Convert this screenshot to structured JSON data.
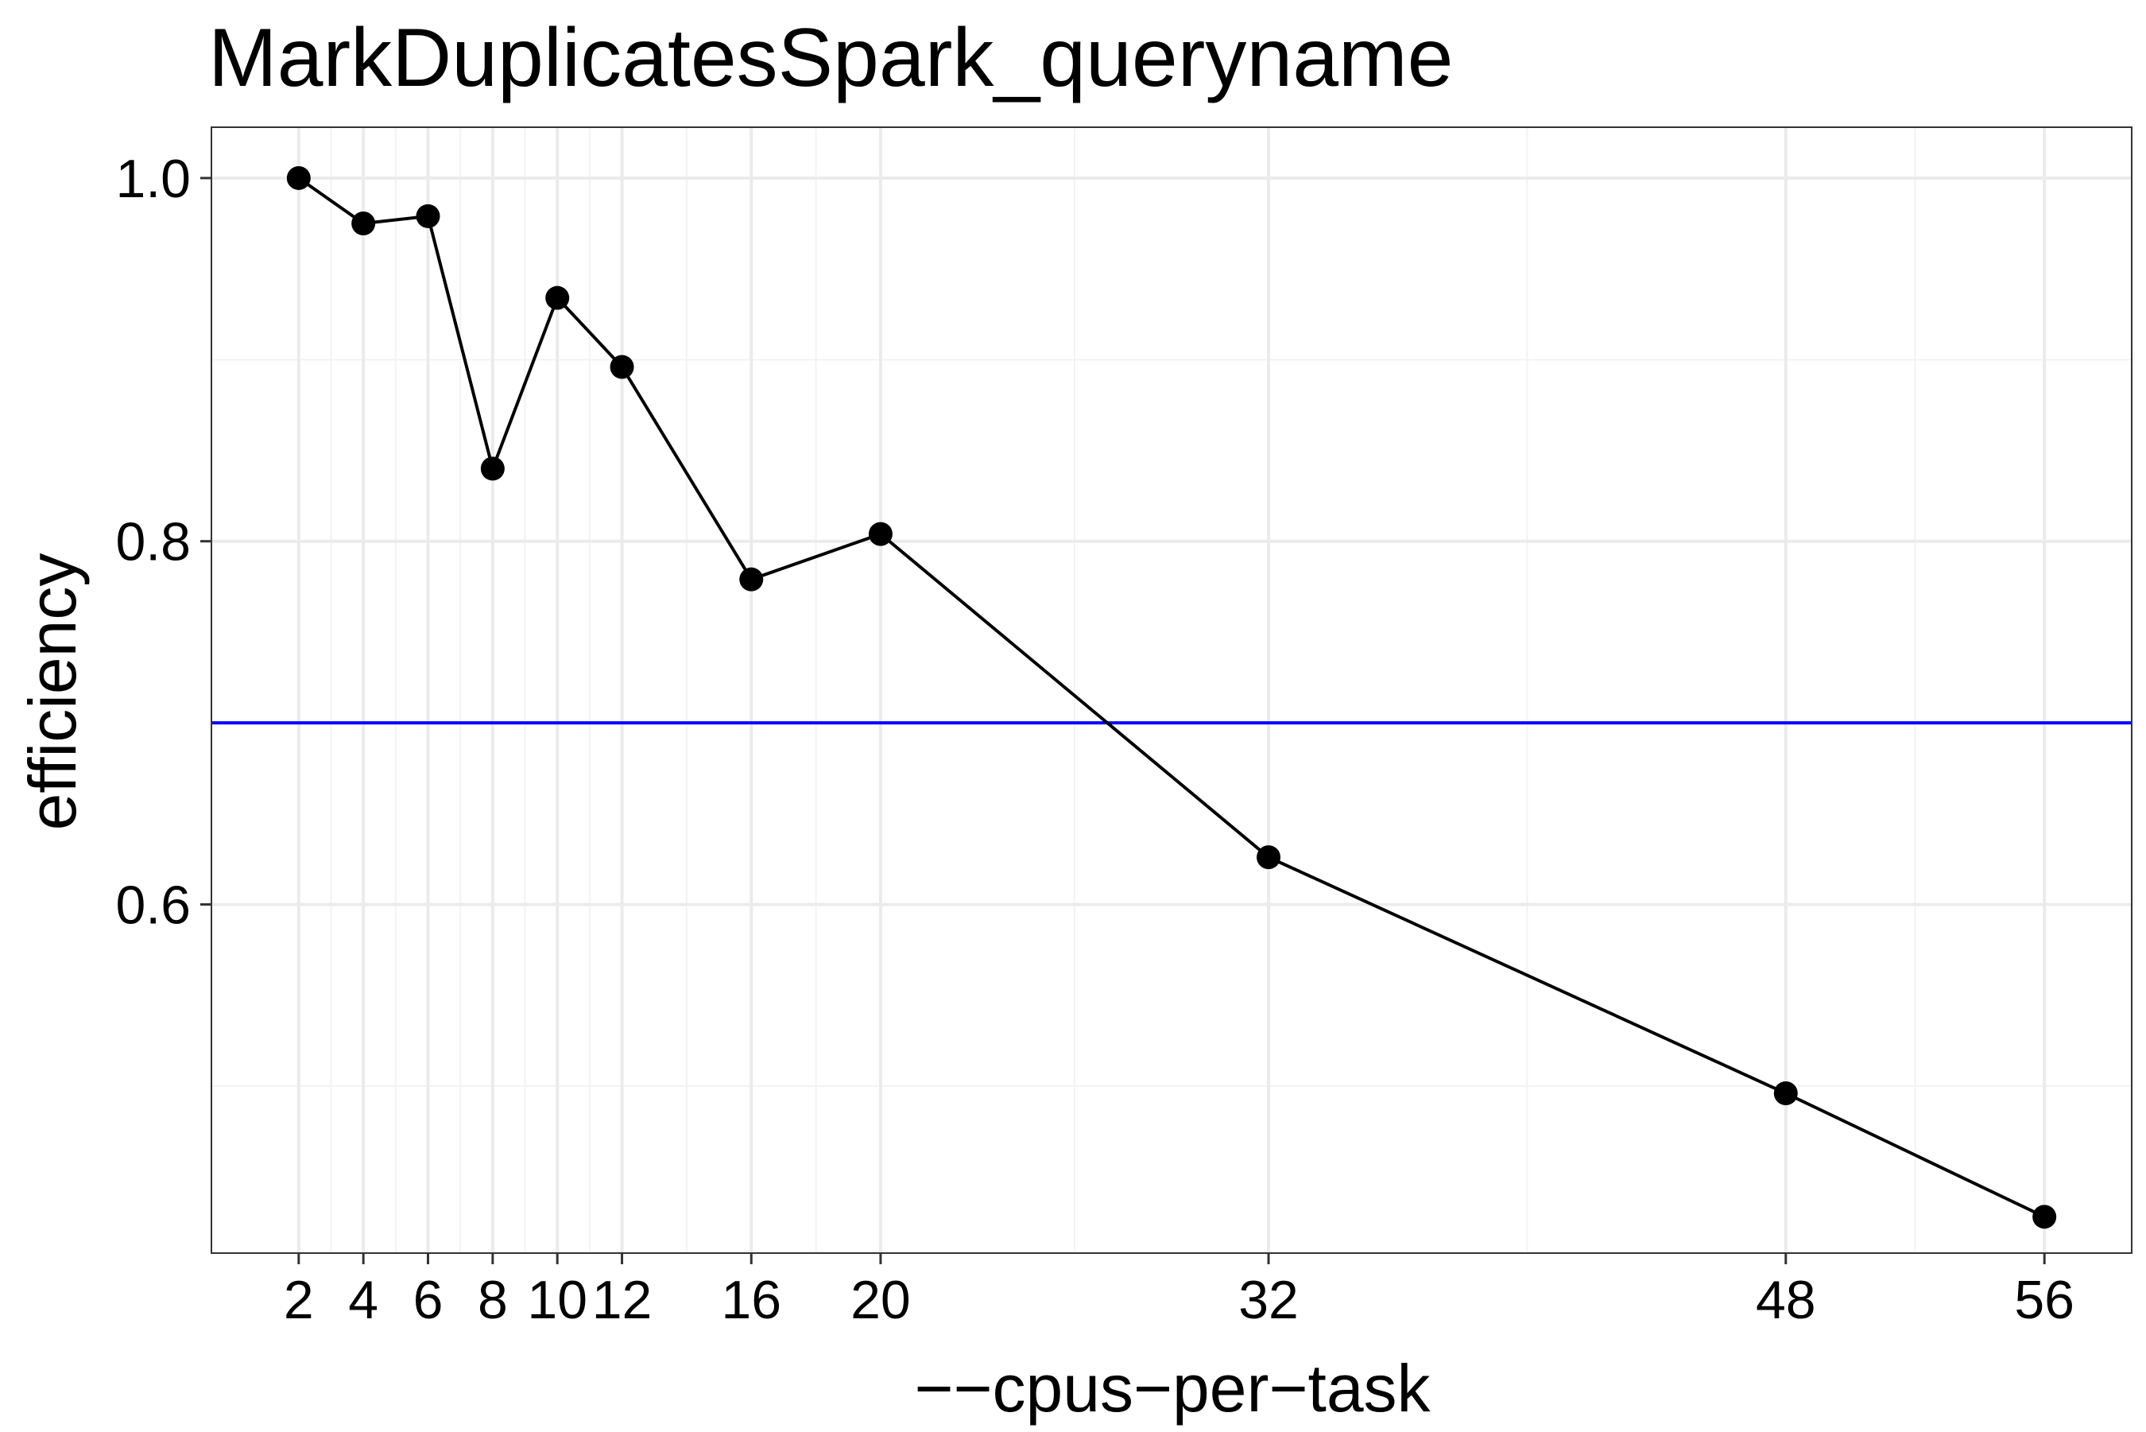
{
  "chart_data": {
    "type": "line",
    "title": "MarkDuplicatesSpark_queryname",
    "xlabel": "−−cpus−per−task",
    "ylabel": "efficiency",
    "x_ticks": [
      2,
      4,
      6,
      8,
      10,
      12,
      16,
      20,
      32,
      48,
      56
    ],
    "x_tick_labels": [
      "2",
      "4",
      "6",
      "8",
      "10",
      "12",
      "16",
      "20",
      "32",
      "48",
      "56"
    ],
    "y_ticks": [
      0.6,
      0.8,
      1.0
    ],
    "y_tick_labels": [
      "0.6",
      "0.8",
      "1.0"
    ],
    "xlim": [
      -0.7,
      58.7
    ],
    "ylim": [
      0.408,
      1.028
    ],
    "grid": true,
    "series": [
      {
        "x": [
          2,
          4,
          6,
          8,
          10,
          12,
          16,
          20,
          32,
          48,
          56
        ],
        "values": [
          1.0,
          0.975,
          0.979,
          0.84,
          0.934,
          0.896,
          0.779,
          0.804,
          0.626,
          0.496,
          0.428
        ],
        "color": "#000000"
      }
    ],
    "reference_line": {
      "orientation": "horizontal",
      "y": 0.7,
      "color": "#0000ff"
    }
  }
}
